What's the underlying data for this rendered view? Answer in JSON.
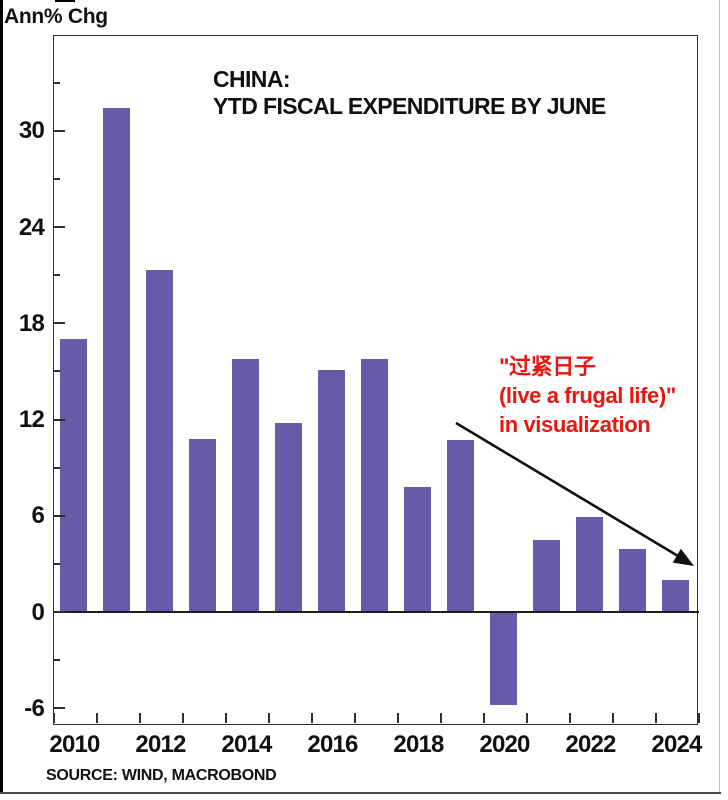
{
  "header": {
    "ylabel": "Ann% Chg"
  },
  "title": {
    "line1": "CHINA:",
    "line2": "YTD FISCAL EXPENDITURE BY JUNE"
  },
  "annotation": {
    "line1": "\"过紧日子",
    "line2": "(live a frugal life)\"",
    "line3": "in visualization",
    "color": "#e81710"
  },
  "source": "SOURCE: WIND, MACROBOND",
  "chart_data": {
    "type": "bar",
    "title": "CHINA: YTD FISCAL EXPENDITURE BY JUNE",
    "ylabel": "Ann% Chg",
    "xlabel": "",
    "categories": [
      2010,
      2011,
      2012,
      2013,
      2014,
      2015,
      2016,
      2017,
      2018,
      2019,
      2020,
      2021,
      2022,
      2023,
      2024
    ],
    "values": [
      17.0,
      31.4,
      21.3,
      10.8,
      15.8,
      11.8,
      15.1,
      15.8,
      7.8,
      10.7,
      -5.8,
      4.5,
      5.9,
      3.9,
      2.0
    ],
    "ylim": [
      -7,
      36
    ],
    "yticks_major": [
      -6,
      0,
      6,
      12,
      18,
      24,
      30
    ],
    "yticks_minor": [
      -3,
      3,
      9,
      15,
      21,
      27,
      33
    ],
    "xtick_labels": [
      "2010",
      "2012",
      "2014",
      "2016",
      "2018",
      "2020",
      "2022",
      "2024"
    ],
    "bar_color": "#685aa8",
    "axis_color": "#2e2e2e",
    "grid": false,
    "legend": false
  }
}
